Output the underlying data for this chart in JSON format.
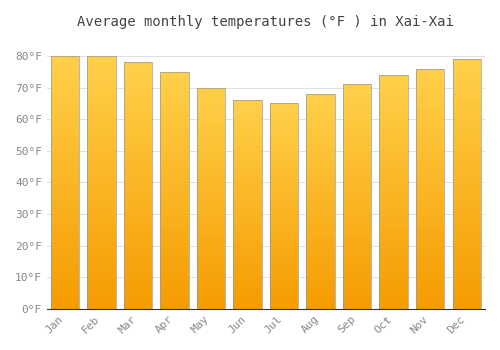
{
  "title": "Average monthly temperatures (°F ) in Xai-Xai",
  "months": [
    "Jan",
    "Feb",
    "Mar",
    "Apr",
    "May",
    "Jun",
    "Jul",
    "Aug",
    "Sep",
    "Oct",
    "Nov",
    "Dec"
  ],
  "values": [
    80,
    80,
    78,
    75,
    70,
    66,
    65,
    68,
    71,
    74,
    76,
    79
  ],
  "bar_color_top": "#FFD04A",
  "bar_color_bottom": "#F59B00",
  "bar_edge_color": "#999999",
  "background_color": "#FFFFFF",
  "grid_color": "#E0E0E0",
  "ytick_labels": [
    "0°F",
    "10°F",
    "20°F",
    "30°F",
    "40°F",
    "50°F",
    "60°F",
    "70°F",
    "80°F"
  ],
  "ytick_values": [
    0,
    10,
    20,
    30,
    40,
    50,
    60,
    70,
    80
  ],
  "ylim": [
    0,
    86
  ],
  "title_fontsize": 10,
  "tick_fontsize": 8,
  "bar_width": 0.78
}
